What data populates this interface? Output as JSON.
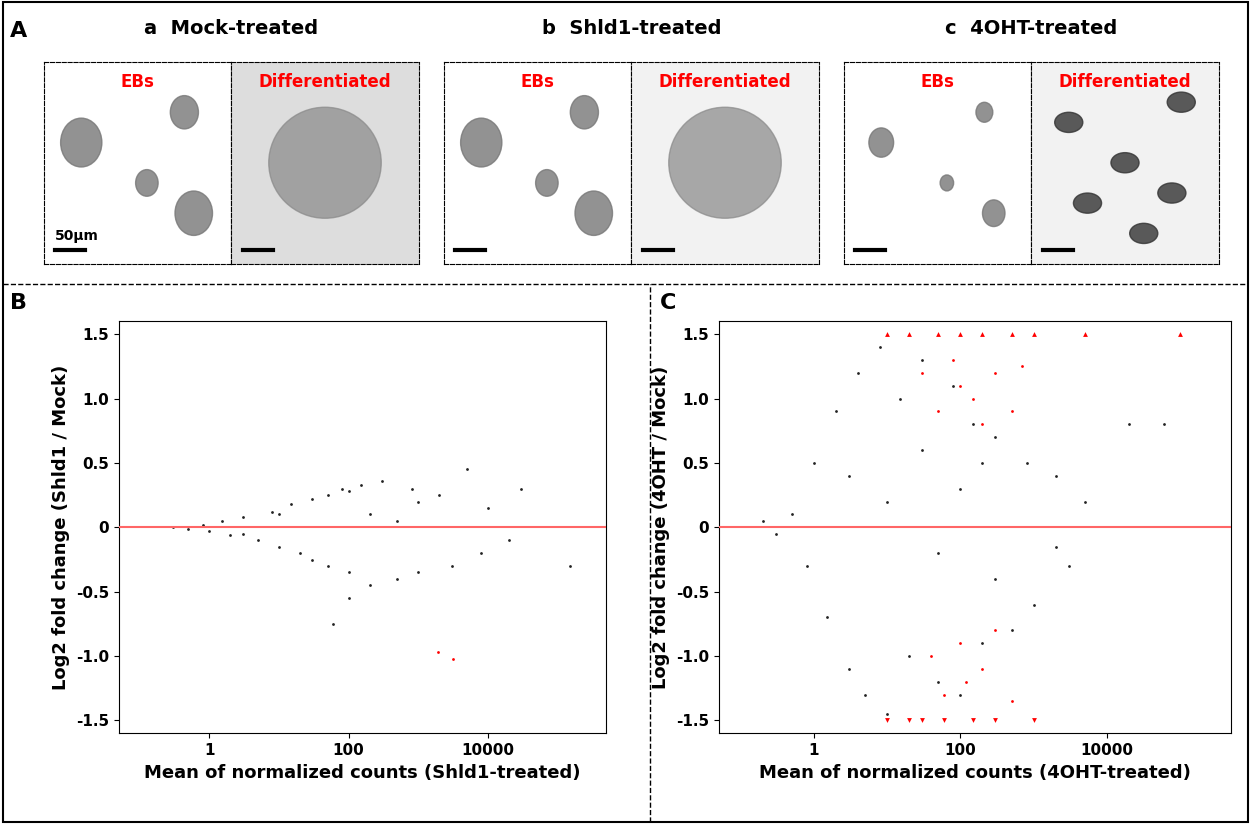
{
  "panel_labels": [
    "A",
    "B",
    "C"
  ],
  "panel_a": {
    "scale_bar": "50µm",
    "subpanels": [
      {
        "letter": "a",
        "title": "Mock-treated",
        "images": [
          "EBs",
          "Differentiated"
        ]
      },
      {
        "letter": "b",
        "title": "Shld1-treated",
        "images": [
          "EBs",
          "Differentiated"
        ]
      },
      {
        "letter": "c",
        "title": "4OHT-treated",
        "images": [
          "EBs",
          "Differentiated"
        ]
      }
    ]
  },
  "chart_data": [
    {
      "type": "scatter",
      "panel": "B",
      "x_label": "Mean of normalized counts (Shld1-treated)",
      "y_label": "Log2 fold change (Shld1 / Mock)",
      "log": "x",
      "xlim": [
        0.05,
        500000
      ],
      "xticks": [
        1,
        100,
        10000
      ],
      "ylim": [
        -1.6,
        1.6
      ],
      "yticks": [
        -1.5,
        {
          "value": -1,
          "label": "-1.0"
        },
        -0.5,
        0,
        0.5,
        {
          "value": 1,
          "label": "1.0"
        },
        1.5
      ],
      "reference_line": 0,
      "reference_color": "#ff6666",
      "series": [
        {
          "color": "#222222",
          "marker": "circle",
          "x": [
            0.3,
            0.5,
            0.8,
            1,
            1.5,
            2,
            3,
            5,
            8,
            10,
            15,
            20,
            30,
            50,
            80,
            100,
            150,
            200,
            300,
            500,
            800,
            1000,
            2000,
            3000,
            5000,
            8000,
            10000,
            20000,
            30000,
            150000,
            50,
            100,
            200,
            30,
            10,
            3,
            500,
            1000,
            100,
            60
          ],
          "values": [
            0,
            -0.01,
            0.02,
            -0.03,
            0.05,
            -0.06,
            0.08,
            -0.1,
            0.12,
            -0.15,
            0.18,
            -0.2,
            0.22,
            -0.3,
            0.3,
            -0.35,
            0.33,
            -0.45,
            0.36,
            -0.4,
            0.3,
            -0.35,
            0.25,
            -0.3,
            0.45,
            -0.2,
            0.15,
            -0.1,
            0.3,
            -0.3,
            0.25,
            0.28,
            0.1,
            -0.25,
            0.1,
            -0.05,
            0.05,
            0.2,
            -0.55,
            -0.75
          ]
        },
        {
          "color": "#ff0000",
          "marker": "circle",
          "x": [
            1900,
            3200
          ],
          "values": [
            -0.97,
            -1.02
          ]
        }
      ]
    },
    {
      "type": "scatter",
      "panel": "C",
      "x_label": "Mean of normalized counts (4OHT-treated)",
      "y_label": "Log2 fold change (4OHT / Mock)",
      "log": "x",
      "xlim": [
        0.05,
        500000
      ],
      "xticks": [
        1,
        100,
        10000
      ],
      "ylim": [
        -1.6,
        1.6
      ],
      "yticks": [
        -1.5,
        {
          "value": -1,
          "label": "-1.0"
        },
        -0.5,
        0,
        0.5,
        {
          "value": 1,
          "label": "1.0"
        },
        1.5
      ],
      "reference_line": 0,
      "reference_color": "#ff6666",
      "series": [
        {
          "color": "#222222",
          "marker": "circle",
          "x": [
            0.2,
            0.3,
            0.5,
            0.8,
            1,
            1.5,
            2,
            3,
            4,
            5,
            8,
            10,
            15,
            20,
            30,
            50,
            80,
            100,
            150,
            200,
            300,
            500,
            800,
            1000,
            2000,
            3000,
            5000,
            2000,
            100,
            50,
            10,
            3,
            300,
            20000,
            30,
            200,
            60000
          ],
          "values": [
            0.05,
            -0.05,
            0.1,
            -0.3,
            0.5,
            -0.7,
            0.9,
            -1.1,
            1.2,
            -1.3,
            1.4,
            -1.45,
            1.0,
            -1.0,
            1.3,
            -1.2,
            1.1,
            -1.3,
            0.8,
            -0.9,
            0.7,
            -0.8,
            0.5,
            -0.6,
            0.4,
            -0.3,
            0.2,
            -0.15,
            0.3,
            -0.2,
            0.2,
            0.4,
            -0.4,
            0.8,
            0.6,
            0.5,
            0.8
          ]
        },
        {
          "color": "#ff0000",
          "marker": "circle",
          "x": [
            30,
            50,
            80,
            100,
            150,
            200,
            300,
            500,
            40,
            60,
            100,
            120,
            200,
            300,
            500,
            700
          ],
          "values": [
            1.2,
            0.9,
            1.3,
            1.1,
            1.0,
            0.8,
            1.2,
            0.9,
            -1.0,
            -1.3,
            -0.9,
            -1.2,
            -1.1,
            -0.8,
            -1.35,
            1.25
          ]
        },
        {
          "color": "#ff0000",
          "marker": "triangle_up",
          "x": [
            10,
            20,
            50,
            100,
            200,
            500,
            1000,
            5000,
            100000
          ],
          "values": [
            1.5,
            1.5,
            1.5,
            1.5,
            1.5,
            1.5,
            1.5,
            1.5,
            1.5
          ]
        },
        {
          "color": "#ff0000",
          "marker": "triangle_down",
          "x": [
            10,
            20,
            30,
            60,
            150,
            300,
            1000
          ],
          "values": [
            -1.5,
            -1.5,
            -1.5,
            -1.5,
            -1.5,
            -1.5,
            -1.5
          ]
        }
      ]
    }
  ]
}
